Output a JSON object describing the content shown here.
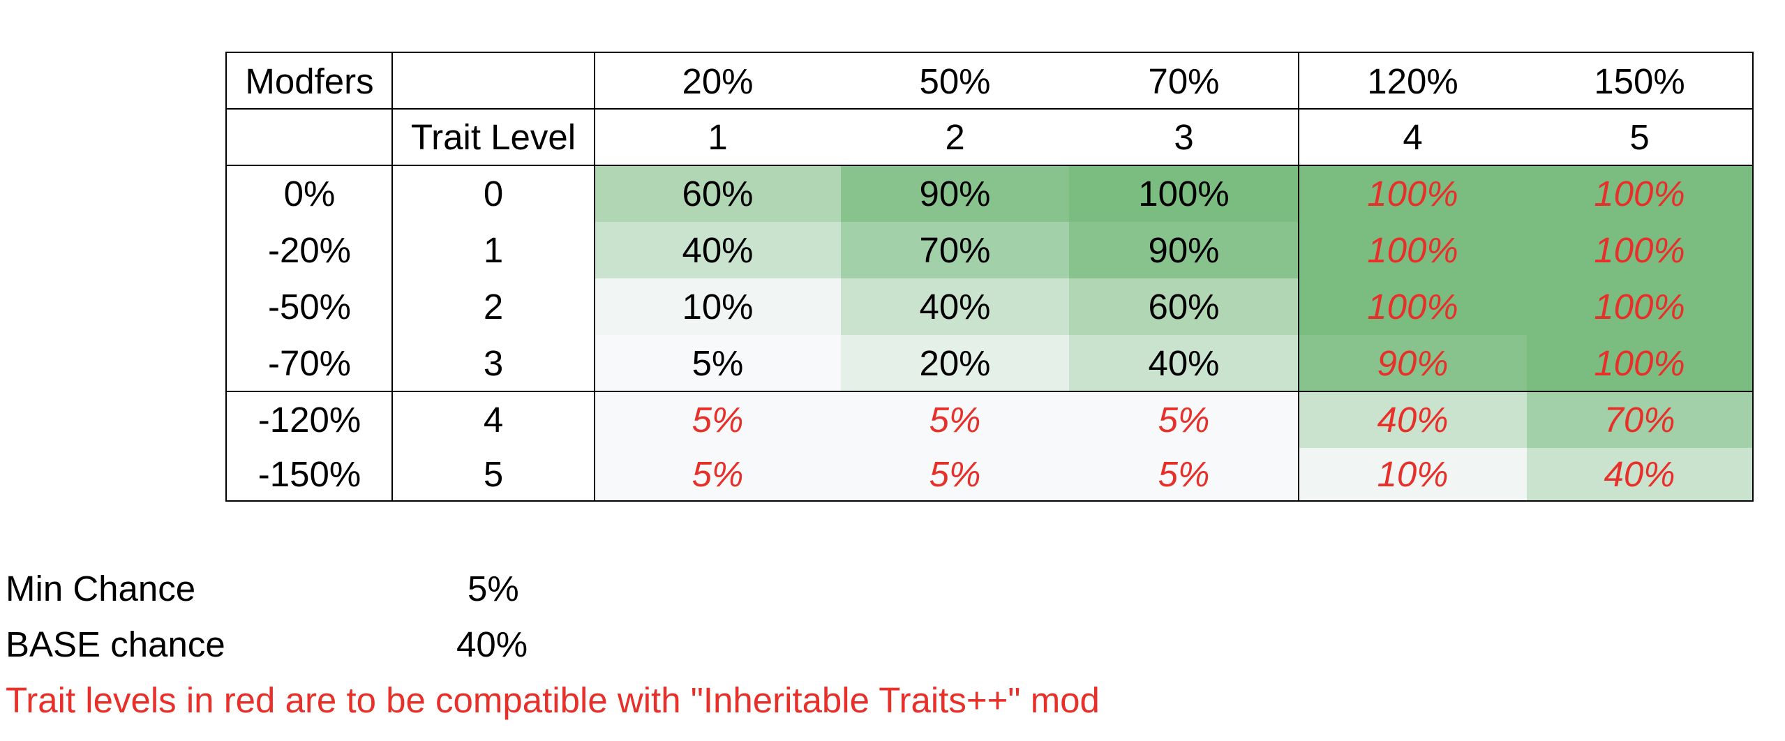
{
  "table": {
    "corner_label": "Modfers",
    "trait_level_label": "Trait Level",
    "column_modifiers": [
      "20%",
      "50%",
      "70%",
      "120%",
      "150%"
    ],
    "column_levels": [
      "1",
      "2",
      "3",
      "4",
      "5"
    ],
    "rows": [
      {
        "modifier": "0%",
        "level": "0",
        "cells": [
          "60%",
          "90%",
          "100%",
          "100%",
          "100%"
        ],
        "red": [
          false,
          false,
          false,
          true,
          true
        ]
      },
      {
        "modifier": "-20%",
        "level": "1",
        "cells": [
          "40%",
          "70%",
          "90%",
          "100%",
          "100%"
        ],
        "red": [
          false,
          false,
          false,
          true,
          true
        ]
      },
      {
        "modifier": "-50%",
        "level": "2",
        "cells": [
          "10%",
          "40%",
          "60%",
          "100%",
          "100%"
        ],
        "red": [
          false,
          false,
          false,
          true,
          true
        ]
      },
      {
        "modifier": "-70%",
        "level": "3",
        "cells": [
          "5%",
          "20%",
          "40%",
          "90%",
          "100%"
        ],
        "red": [
          false,
          false,
          false,
          true,
          true
        ]
      },
      {
        "modifier": "-120%",
        "level": "4",
        "cells": [
          "5%",
          "5%",
          "5%",
          "40%",
          "70%"
        ],
        "red": [
          true,
          true,
          true,
          true,
          true
        ]
      },
      {
        "modifier": "-150%",
        "level": "5",
        "cells": [
          "5%",
          "5%",
          "5%",
          "10%",
          "40%"
        ],
        "red": [
          true,
          true,
          true,
          true,
          true
        ]
      }
    ],
    "color_scale": {
      "low": "#f8f9fb",
      "high": "#7bbd81",
      "red_text": "#e8302a"
    }
  },
  "notes": {
    "min_chance_label": "Min Chance",
    "min_chance_value": "5%",
    "base_chance_label": "BASE chance",
    "base_chance_value": "40%",
    "compat_note": "Trait levels in red are to be compatible with \"Inheritable Traits++\" mod"
  }
}
